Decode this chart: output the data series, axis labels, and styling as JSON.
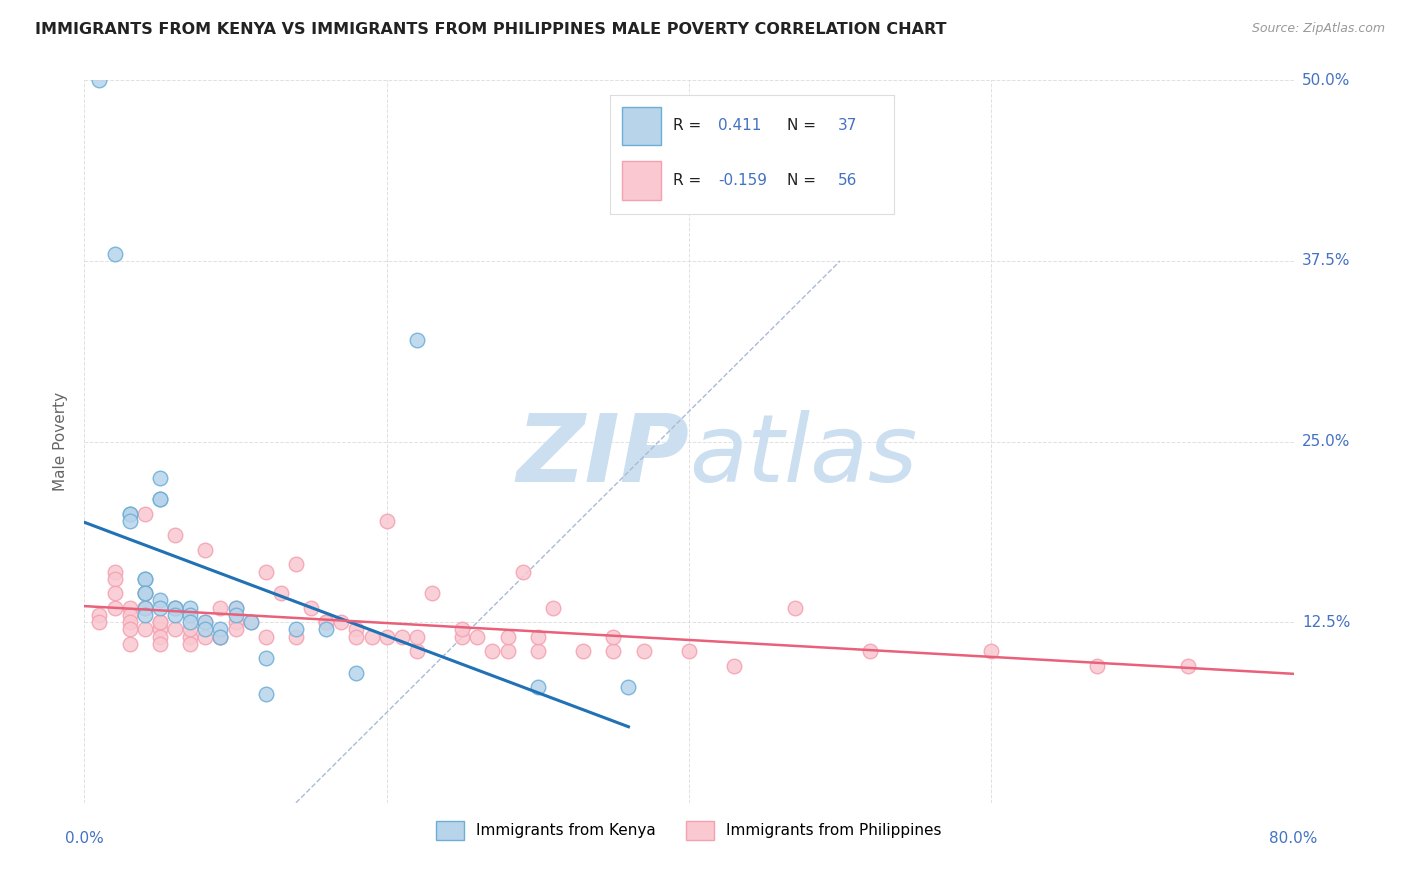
{
  "title": "IMMIGRANTS FROM KENYA VS IMMIGRANTS FROM PHILIPPINES MALE POVERTY CORRELATION CHART",
  "source": "Source: ZipAtlas.com",
  "ylabel": "Male Poverty",
  "xlim": [
    0.0,
    0.8
  ],
  "ylim": [
    0.0,
    0.5
  ],
  "xticks": [
    0.0,
    0.2,
    0.4,
    0.6,
    0.8
  ],
  "ytick_positions": [
    0.0,
    0.125,
    0.25,
    0.375,
    0.5
  ],
  "ytick_labels": [
    "",
    "12.5%",
    "25.0%",
    "37.5%",
    "50.0%"
  ],
  "kenya_color_edge": "#6baed6",
  "kenya_color_fill": "#b8d4ea",
  "philippines_color_edge": "#f4a0b0",
  "philippines_color_fill": "#f9c8d0",
  "line_kenya_color": "#2171b5",
  "line_philippines_color": "#e8607a",
  "background_color": "#ffffff",
  "grid_color": "#cccccc",
  "watermark_color": "#ccdff0",
  "label_color": "#4472c4",
  "kenya_x": [
    0.01,
    0.02,
    0.03,
    0.03,
    0.03,
    0.04,
    0.04,
    0.04,
    0.04,
    0.04,
    0.05,
    0.05,
    0.05,
    0.05,
    0.06,
    0.06,
    0.07,
    0.07,
    0.07,
    0.08,
    0.08,
    0.09,
    0.09,
    0.1,
    0.1,
    0.11,
    0.12,
    0.12,
    0.14,
    0.16,
    0.18,
    0.22,
    0.3,
    0.36,
    0.04,
    0.05,
    0.06
  ],
  "kenya_y": [
    0.5,
    0.38,
    0.2,
    0.2,
    0.195,
    0.155,
    0.155,
    0.145,
    0.135,
    0.13,
    0.225,
    0.21,
    0.21,
    0.14,
    0.135,
    0.135,
    0.135,
    0.13,
    0.125,
    0.125,
    0.12,
    0.12,
    0.115,
    0.135,
    0.13,
    0.125,
    0.1,
    0.075,
    0.12,
    0.12,
    0.09,
    0.32,
    0.08,
    0.08,
    0.145,
    0.135,
    0.13
  ],
  "phil_x": [
    0.01,
    0.01,
    0.02,
    0.02,
    0.02,
    0.02,
    0.03,
    0.03,
    0.03,
    0.03,
    0.03,
    0.04,
    0.04,
    0.04,
    0.04,
    0.05,
    0.05,
    0.05,
    0.05,
    0.06,
    0.06,
    0.07,
    0.07,
    0.08,
    0.08,
    0.09,
    0.09,
    0.1,
    0.1,
    0.11,
    0.12,
    0.13,
    0.14,
    0.15,
    0.16,
    0.17,
    0.18,
    0.19,
    0.2,
    0.21,
    0.22,
    0.23,
    0.25,
    0.26,
    0.27,
    0.28,
    0.29,
    0.3,
    0.31,
    0.33,
    0.35,
    0.37,
    0.4,
    0.43,
    0.47,
    0.52,
    0.6,
    0.67,
    0.73,
    0.04,
    0.05,
    0.06,
    0.07,
    0.08,
    0.09,
    0.1,
    0.12,
    0.14,
    0.16,
    0.18,
    0.2,
    0.22,
    0.25,
    0.28,
    0.3,
    0.35
  ],
  "phil_y": [
    0.13,
    0.125,
    0.16,
    0.155,
    0.145,
    0.135,
    0.135,
    0.13,
    0.125,
    0.12,
    0.11,
    0.2,
    0.145,
    0.135,
    0.12,
    0.125,
    0.12,
    0.115,
    0.11,
    0.185,
    0.135,
    0.115,
    0.11,
    0.175,
    0.125,
    0.135,
    0.115,
    0.135,
    0.125,
    0.125,
    0.16,
    0.145,
    0.165,
    0.135,
    0.125,
    0.125,
    0.12,
    0.115,
    0.195,
    0.115,
    0.105,
    0.145,
    0.115,
    0.115,
    0.105,
    0.105,
    0.16,
    0.105,
    0.135,
    0.105,
    0.105,
    0.105,
    0.105,
    0.095,
    0.135,
    0.105,
    0.105,
    0.095,
    0.095,
    0.135,
    0.125,
    0.12,
    0.12,
    0.115,
    0.115,
    0.12,
    0.115,
    0.115,
    0.125,
    0.115,
    0.115,
    0.115,
    0.12,
    0.115,
    0.115,
    0.115
  ]
}
